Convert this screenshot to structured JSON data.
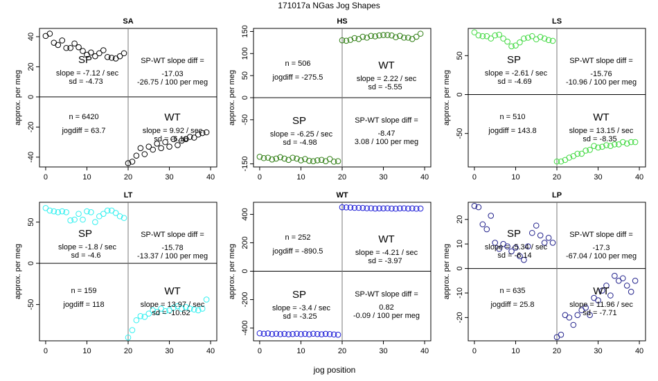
{
  "figure_title": "171017a    NGas Jog Shapes",
  "shared_xlabel": "jog position",
  "chart_data": [
    {
      "type": "scatter",
      "title": "SA",
      "ylabel": "approx. per meg",
      "color": "#000000",
      "xlim": [
        -1.5,
        41.5
      ],
      "ylim": [
        -46.5,
        45.5
      ],
      "xticks": [
        0,
        10,
        20,
        30,
        40
      ],
      "yticks": [
        -40,
        -20,
        0,
        20,
        40
      ],
      "sp_x": [
        0,
        1,
        2,
        3,
        4,
        5,
        6,
        7,
        8,
        9,
        10,
        11,
        12,
        13,
        14,
        15,
        16,
        17,
        18,
        19
      ],
      "sp_y": [
        40.5,
        42,
        36,
        34.5,
        37.5,
        32.5,
        32.5,
        35.5,
        33,
        30.5,
        28,
        29.5,
        27,
        29,
        31,
        26.5,
        26,
        25.5,
        27,
        29
      ],
      "wt_x": [
        20,
        21,
        22,
        23,
        24,
        25,
        26,
        27,
        28,
        29,
        30,
        31,
        32,
        33,
        34,
        35,
        36,
        37,
        38,
        39
      ],
      "wt_y": [
        -44,
        -43,
        -39,
        -34,
        -38,
        -33,
        -35,
        -31,
        -34,
        -30,
        -33,
        -28,
        -32,
        -29,
        -28,
        -26.5,
        -27,
        -25,
        -24,
        -23.5
      ],
      "labels": {
        "sp": "SP",
        "wt": "WT",
        "sp_slope": "slope = -7.12 / sec",
        "sp_sd": "sd = -4.73",
        "wt_slope": "slope = 9.92 / sec",
        "wt_sd": "sd = -6.16",
        "n": "n = 6420",
        "jogdiff": "jogdiff = 63.7",
        "diff_label": "SP-WT slope diff =",
        "diff_value": "-17.03",
        "diff_per": "-26.75 / 100 per meg"
      },
      "layout": "sp-top"
    },
    {
      "type": "scatter",
      "title": "HS",
      "ylabel": "approx. per meg",
      "color": "#2e7d12",
      "xlim": [
        -1.5,
        41.5
      ],
      "ylim": [
        -157,
        157
      ],
      "xticks": [
        0,
        10,
        20,
        30,
        40
      ],
      "yticks": [
        -150,
        -50,
        0,
        50,
        100,
        150
      ],
      "sp_x": [
        0,
        1,
        2,
        3,
        4,
        5,
        6,
        7,
        8,
        9,
        10,
        11,
        12,
        13,
        14,
        15,
        16,
        17,
        18,
        19
      ],
      "sp_y": [
        -134,
        -137,
        -136,
        -140,
        -138,
        -135,
        -138,
        -141,
        -136,
        -138,
        -142,
        -139,
        -143,
        -144,
        -142,
        -141,
        -144,
        -139,
        -145,
        -144
      ],
      "wt_x": [
        20,
        21,
        22,
        23,
        24,
        25,
        26,
        27,
        28,
        29,
        30,
        31,
        32,
        33,
        34,
        35,
        36,
        37,
        38,
        39
      ],
      "wt_y": [
        130,
        129,
        131,
        135,
        133,
        138,
        136,
        140,
        139,
        141,
        142,
        142,
        141,
        137,
        140,
        136,
        136,
        133,
        138,
        145
      ],
      "labels": {
        "sp": "SP",
        "wt": "WT",
        "sp_slope": "slope = -6.25 / sec",
        "sp_sd": "sd = -4.98",
        "wt_slope": "slope = 2.22 / sec",
        "wt_sd": "sd = -5.55",
        "n": "n = 506",
        "jogdiff": "jogdiff = -275.5",
        "diff_label": "SP-WT slope diff =",
        "diff_value": "-8.47",
        "diff_per": "3.08 / 100 per meg"
      },
      "layout": "sp-bottom"
    },
    {
      "type": "scatter",
      "title": "LS",
      "ylabel": "approx. per meg",
      "color": "#3fd93f",
      "xlim": [
        -1.5,
        41.5
      ],
      "ylim": [
        -93,
        85
      ],
      "xticks": [
        0,
        10,
        20,
        30,
        40
      ],
      "yticks": [
        -50,
        0,
        50
      ],
      "sp_x": [
        0,
        1,
        2,
        3,
        4,
        5,
        6,
        7,
        8,
        9,
        10,
        11,
        12,
        13,
        14,
        15,
        16,
        17,
        18,
        19
      ],
      "sp_y": [
        80,
        76,
        75,
        75,
        72,
        76,
        77,
        72,
        68,
        62,
        63,
        67,
        72,
        73,
        75,
        71,
        74,
        72,
        70,
        69
      ],
      "wt_x": [
        20,
        21,
        22,
        23,
        24,
        25,
        26,
        27,
        28,
        29,
        30,
        31,
        32,
        33,
        34,
        35,
        36,
        37,
        38,
        39
      ],
      "wt_y": [
        -86,
        -86,
        -84,
        -81,
        -79,
        -76,
        -76,
        -72,
        -71,
        -66,
        -68,
        -67,
        -65,
        -66,
        -64,
        -64,
        -61,
        -63,
        -61,
        -61
      ],
      "labels": {
        "sp": "SP",
        "wt": "WT",
        "sp_slope": "slope = -2.61 / sec",
        "sp_sd": "sd = -4.69",
        "wt_slope": "slope = 13.15 / sec",
        "wt_sd": "sd = -8.35",
        "n": "n = 510",
        "jogdiff": "jogdiff = 143.8",
        "diff_label": "SP-WT slope diff =",
        "diff_value": "-15.76",
        "diff_per": "-10.96 / 100 per meg"
      },
      "layout": "sp-top"
    },
    {
      "type": "scatter",
      "title": "LT",
      "ylabel": "approx. per meg",
      "color": "#2ff0f0",
      "xlim": [
        -1.5,
        41.5
      ],
      "ylim": [
        -94,
        74
      ],
      "xticks": [
        0,
        10,
        20,
        30,
        40
      ],
      "yticks": [
        -50,
        0,
        50
      ],
      "sp_x": [
        0,
        1,
        2,
        3,
        4,
        5,
        6,
        7,
        8,
        9,
        10,
        11,
        12,
        13,
        14,
        15,
        16,
        17,
        18,
        19
      ],
      "sp_y": [
        67,
        64,
        63,
        62,
        63,
        62,
        52,
        53,
        60,
        53,
        63,
        62,
        50,
        57,
        60,
        64,
        64,
        61,
        57,
        55
      ],
      "wt_x": [
        20,
        21,
        22,
        23,
        24,
        25,
        26,
        27,
        28,
        29,
        30,
        31,
        32,
        33,
        34,
        35,
        36,
        37,
        38,
        39
      ],
      "wt_y": [
        -90,
        -81,
        -69,
        -64,
        -65,
        -61,
        -57,
        -59,
        -55,
        -58,
        -57,
        -54,
        -52,
        -55,
        -53,
        -55,
        -56,
        -57,
        -55,
        -44
      ],
      "labels": {
        "sp": "SP",
        "wt": "WT",
        "sp_slope": "slope = -1.8 / sec",
        "sp_sd": "sd = -4.6",
        "wt_slope": "slope = 13.97 / sec",
        "wt_sd": "sd = -10.62",
        "n": "n = 159",
        "jogdiff": "jogdiff = 118",
        "diff_label": "SP-WT slope diff =",
        "diff_value": "-15.78",
        "diff_per": "-13.37 / 100 per meg"
      },
      "layout": "sp-top"
    },
    {
      "type": "scatter",
      "title": "WT",
      "ylabel": "approx. per meg",
      "color": "#1a1ad6",
      "xlim": [
        -1.5,
        41.5
      ],
      "ylim": [
        -490,
        485
      ],
      "xticks": [
        0,
        10,
        20,
        30,
        40
      ],
      "yticks": [
        -400,
        -200,
        0,
        200,
        400
      ],
      "sp_x": [
        0,
        1,
        2,
        3,
        4,
        5,
        6,
        7,
        8,
        9,
        10,
        11,
        12,
        13,
        14,
        15,
        16,
        17,
        18,
        19
      ],
      "sp_y": [
        -437,
        -440,
        -438,
        -442,
        -440,
        -443,
        -441,
        -444,
        -442,
        -440,
        -443,
        -441,
        -444,
        -440,
        -442,
        -444,
        -441,
        -443,
        -445,
        -447
      ],
      "wt_x": [
        20,
        21,
        22,
        23,
        24,
        25,
        26,
        27,
        28,
        29,
        30,
        31,
        32,
        33,
        34,
        35,
        36,
        37,
        38,
        39
      ],
      "wt_y": [
        450,
        449,
        448,
        446,
        446,
        445,
        443,
        443,
        441,
        442,
        442,
        443,
        441,
        440,
        442,
        443,
        441,
        442,
        440,
        441
      ],
      "labels": {
        "sp": "SP",
        "wt": "WT",
        "sp_slope": "slope = -3.4 / sec",
        "sp_sd": "sd = -3.25",
        "wt_slope": "slope = -4.21 / sec",
        "wt_sd": "sd = -3.97",
        "n": "n = 252",
        "jogdiff": "jogdiff = -890.5",
        "diff_label": "SP-WT slope diff =",
        "diff_value": "0.82",
        "diff_per": "-0.09 / 100 per meg"
      },
      "layout": "sp-bottom"
    },
    {
      "type": "scatter",
      "title": "LP",
      "ylabel": "approx. per meg",
      "color": "#1f1f8a",
      "xlim": [
        -1.5,
        41.5
      ],
      "ylim": [
        -29.5,
        27
      ],
      "xticks": [
        0,
        10,
        20,
        30,
        40
      ],
      "yticks": [
        -20,
        -10,
        0,
        10,
        20
      ],
      "sp_x": [
        0,
        1,
        2,
        3,
        4,
        5,
        6,
        7,
        8,
        9,
        10,
        11,
        12,
        13,
        14,
        15,
        16,
        17,
        18,
        19
      ],
      "sp_y": [
        25.5,
        25,
        18,
        16,
        21.5,
        10.5,
        8,
        10,
        9,
        7,
        8.5,
        5,
        3.5,
        9,
        14.5,
        17.5,
        13.5,
        10.5,
        12.5,
        10.5
      ],
      "wt_x": [
        20,
        21,
        22,
        23,
        24,
        25,
        26,
        27,
        28,
        29,
        30,
        31,
        32,
        33,
        34,
        35,
        36,
        37,
        38,
        39
      ],
      "wt_y": [
        -28,
        -27,
        -19,
        -20,
        -23,
        -19,
        -17,
        -16,
        -19,
        -12,
        -13,
        -9,
        -7,
        -11,
        -3,
        -5,
        -4,
        -7,
        -9.5,
        -5
      ],
      "labels": {
        "sp": "SP",
        "wt": "WT",
        "sp_slope": "slope = -5.34 / sec",
        "sp_sd": "sd = -6.14",
        "wt_slope": "slope = 11.96 / sec",
        "wt_sd": "sd = -7.71",
        "n": "n = 635",
        "jogdiff": "jogdiff = 25.8",
        "diff_label": "SP-WT slope diff =",
        "diff_value": "-17.3",
        "diff_per": "-67.04 / 100 per meg"
      },
      "layout": "sp-top"
    }
  ]
}
